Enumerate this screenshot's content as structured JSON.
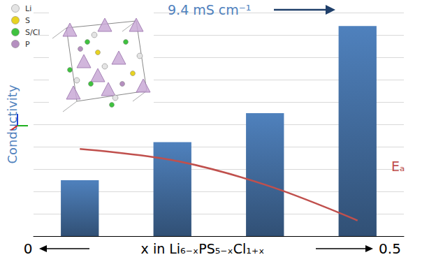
{
  "chart_data": {
    "type": "bar",
    "categories": [
      null,
      null,
      null,
      null
    ],
    "series": [
      {
        "name": "Conductivity",
        "type": "bar",
        "color": "#4f81bd",
        "values": [
          2.5,
          4.2,
          5.5,
          9.4
        ]
      },
      {
        "name": "Eₐ",
        "type": "line",
        "color": "#c0504d",
        "axis": "y2",
        "line_style": "smooth",
        "marker": "none",
        "values": [
          3.9,
          3.4,
          2.3,
          0.7
        ]
      }
    ],
    "ylabel": "Conductivity",
    "y2label": "Eₐ",
    "ylim": [
      0,
      10
    ],
    "yticks": [
      0,
      1,
      2,
      3,
      4,
      5,
      6,
      7,
      8,
      9,
      10
    ],
    "y2lim": [
      0,
      10
    ],
    "y2ticks": [
      0,
      10
    ],
    "grid": true,
    "tick_labels": false,
    "x_label_start": "0",
    "xlabel": "x in Li₆₋ₓPS₅₋ₓCl₁₊ₓ",
    "x_label_end": "0.5",
    "annotation": {
      "text": "9.4 mS cm⁻¹",
      "color": "#4f81bd"
    },
    "inset_legend": [
      {
        "label": "Li",
        "color": "#e4e4e4"
      },
      {
        "label": "S",
        "color": "#e8d321"
      },
      {
        "label": "S/Cl",
        "color": "#3fc23f"
      },
      {
        "label": "P",
        "color": "#b58fc0"
      }
    ]
  }
}
